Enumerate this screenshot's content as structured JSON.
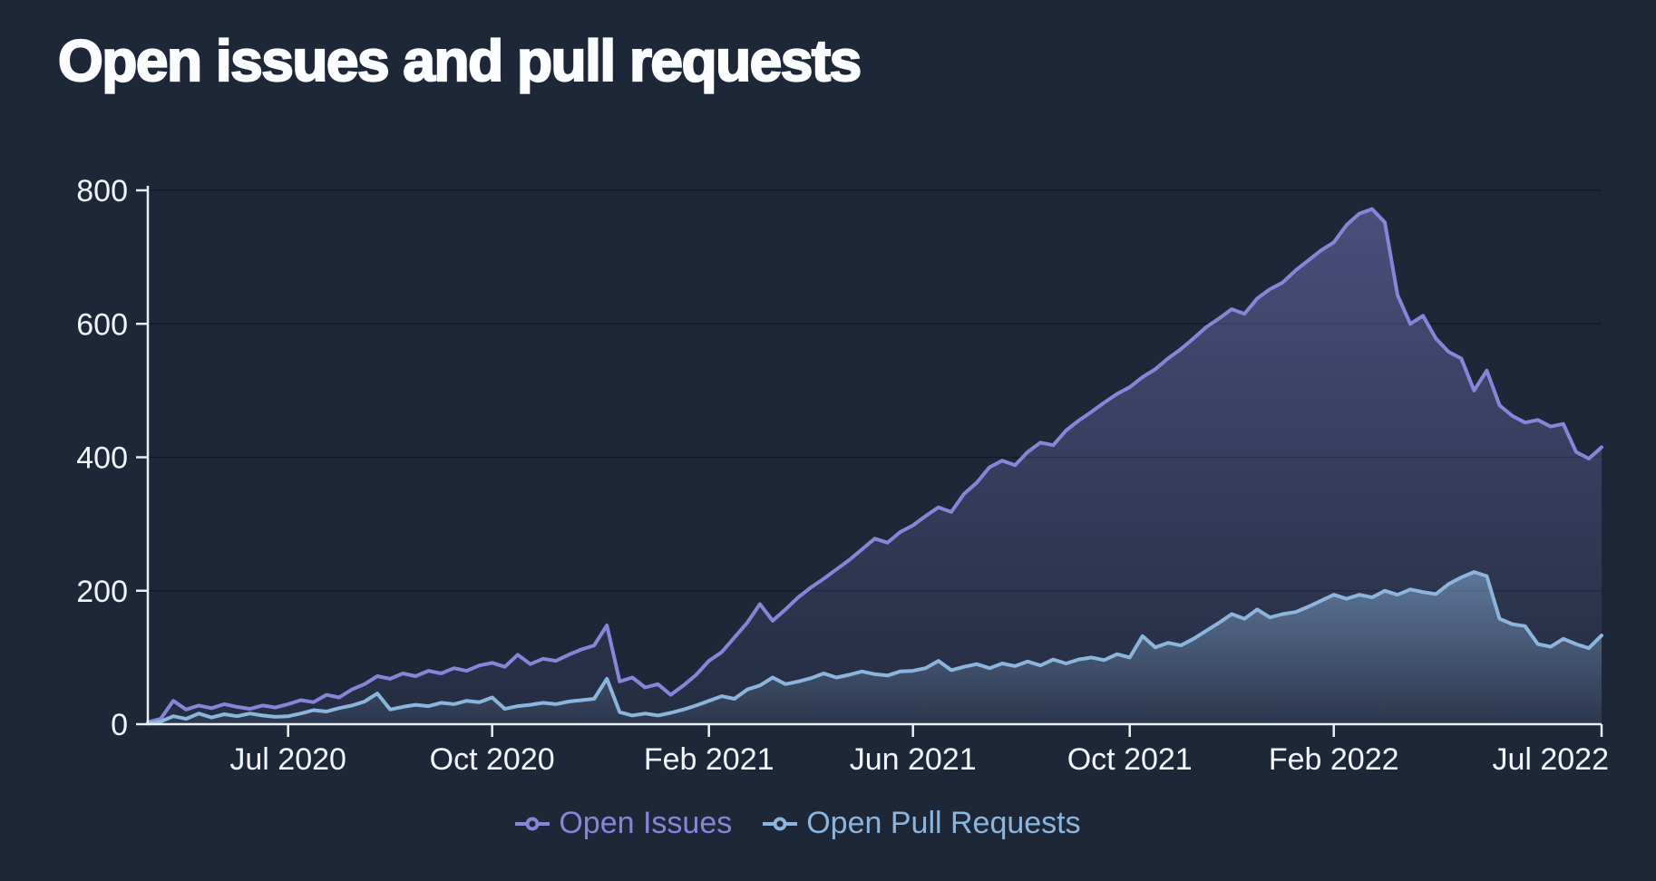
{
  "page": {
    "title": "Open issues and pull requests"
  },
  "colors": {
    "background": "#1d2737",
    "axis": "#eaeff6",
    "grid": "rgba(9,15,26,0.55)",
    "tick_label": "#f2f5f9",
    "open_issues": "#8884d8",
    "open_pull_requests": "#8cb5dd"
  },
  "chart_data": {
    "type": "area",
    "title": "Open issues and pull requests",
    "xlabel": "",
    "ylabel": "",
    "ylim": [
      0,
      800
    ],
    "yticks": [
      0,
      200,
      400,
      600,
      800
    ],
    "grid": true,
    "legend_position": "bottom",
    "xticks": [
      {
        "label": "Jul 2020",
        "i": 11
      },
      {
        "label": "Oct 2020",
        "i": 27
      },
      {
        "label": "Feb 2021",
        "i": 44
      },
      {
        "label": "Jun 2021",
        "i": 60
      },
      {
        "label": "Oct 2021",
        "i": 77
      },
      {
        "label": "Feb 2022",
        "i": 93
      },
      {
        "label": "Jul 2022",
        "i": 114
      }
    ],
    "series": [
      {
        "name": "Open Issues",
        "color": "#8884d8",
        "fill_top_alpha": 0.42,
        "fill_bottom_alpha": 0.06,
        "values": [
          3,
          8,
          35,
          22,
          28,
          24,
          30,
          26,
          23,
          28,
          25,
          30,
          36,
          33,
          44,
          40,
          52,
          60,
          72,
          68,
          76,
          72,
          80,
          76,
          84,
          80,
          88,
          92,
          86,
          104,
          90,
          98,
          95,
          104,
          112,
          118,
          148,
          64,
          70,
          55,
          60,
          44,
          58,
          74,
          95,
          108,
          130,
          152,
          180,
          155,
          172,
          190,
          205,
          218,
          232,
          246,
          262,
          278,
          272,
          288,
          298,
          312,
          325,
          318,
          345,
          362,
          385,
          395,
          388,
          408,
          422,
          418,
          440,
          455,
          468,
          482,
          495,
          505,
          520,
          532,
          548,
          562,
          578,
          595,
          608,
          622,
          615,
          638,
          652,
          662,
          680,
          695,
          710,
          722,
          748,
          765,
          772,
          752,
          643,
          600,
          612,
          578,
          558,
          548,
          500,
          530,
          478,
          462,
          452,
          456,
          446,
          450,
          408,
          398,
          415
        ]
      },
      {
        "name": "Open Pull Requests",
        "color": "#8cb5dd",
        "fill_top_alpha": 0.5,
        "fill_bottom_alpha": 0.07,
        "values": [
          1,
          4,
          12,
          8,
          16,
          10,
          15,
          12,
          16,
          13,
          11,
          12,
          16,
          21,
          19,
          24,
          28,
          34,
          46,
          22,
          26,
          29,
          27,
          32,
          30,
          35,
          33,
          40,
          23,
          27,
          29,
          32,
          30,
          34,
          36,
          38,
          68,
          18,
          13,
          16,
          13,
          17,
          22,
          28,
          35,
          42,
          38,
          52,
          58,
          70,
          60,
          64,
          69,
          76,
          70,
          74,
          79,
          75,
          73,
          79,
          80,
          84,
          95,
          81,
          86,
          90,
          84,
          91,
          87,
          94,
          88,
          97,
          91,
          97,
          100,
          96,
          105,
          100,
          132,
          115,
          122,
          118,
          128,
          140,
          152,
          165,
          158,
          172,
          160,
          165,
          168,
          176,
          185,
          194,
          188,
          194,
          190,
          200,
          194,
          202,
          198,
          195,
          210,
          220,
          228,
          222,
          158,
          150,
          147,
          120,
          116,
          128,
          120,
          114,
          133
        ]
      }
    ]
  }
}
